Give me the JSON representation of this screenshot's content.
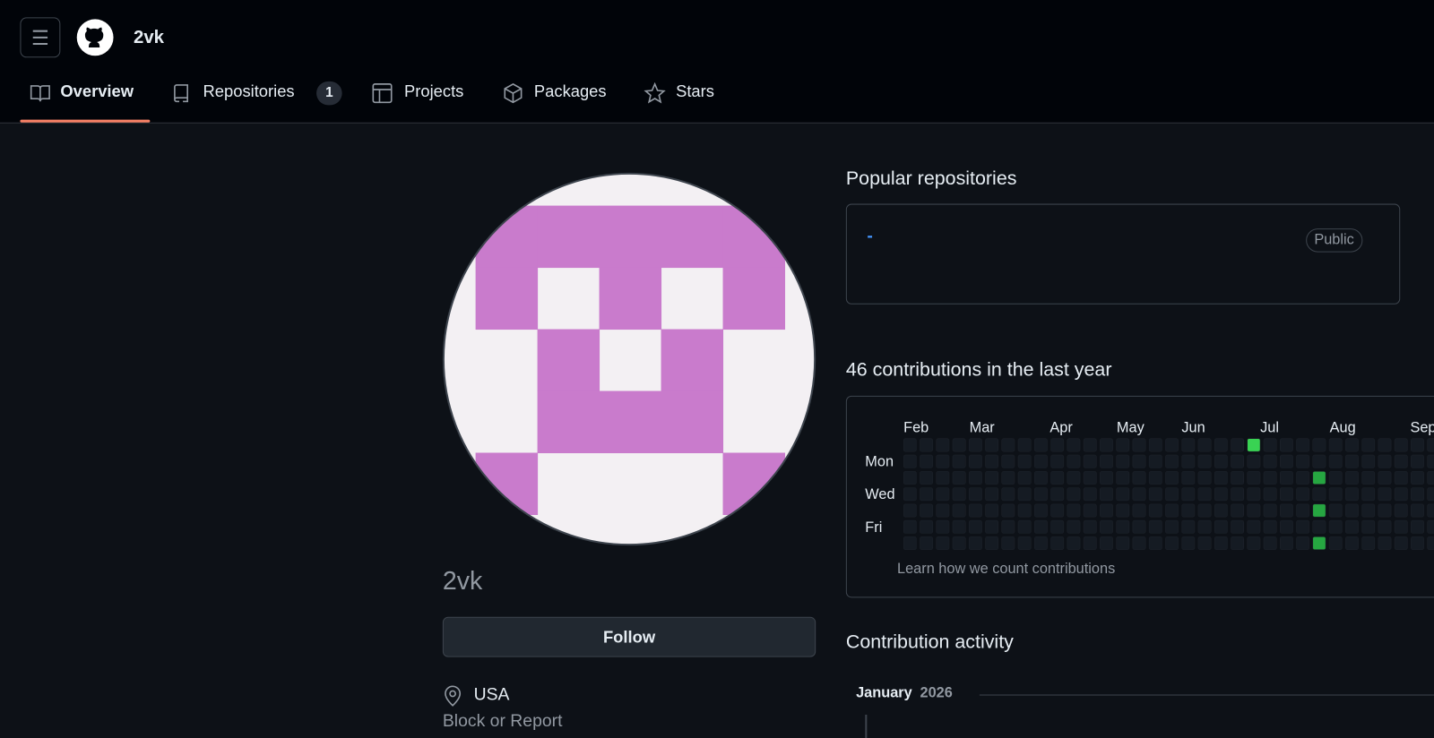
{
  "header": {
    "username": "2vk"
  },
  "nav": {
    "items": [
      {
        "label": "Overview"
      },
      {
        "label": "Repositories",
        "count": "1"
      },
      {
        "label": "Projects"
      },
      {
        "label": "Packages"
      },
      {
        "label": "Stars"
      }
    ]
  },
  "profile": {
    "name": "2vk",
    "follow": "Follow",
    "location": "USA",
    "block": "Block or Report"
  },
  "popular": {
    "title": "Popular repositories",
    "repo": {
      "name": "-",
      "visibility": "Public"
    }
  },
  "contributions": {
    "title": "46 contributions in the last year",
    "months": [
      "Feb",
      "Mar",
      "Apr",
      "May",
      "Jun",
      "Jul",
      "Aug",
      "Sep"
    ],
    "days": [
      "Mon",
      "Wed",
      "Fri"
    ],
    "learn": "Learn how we count contributions"
  },
  "activity": {
    "title": "Contribution activity",
    "month": "January",
    "year": "2026"
  }
}
